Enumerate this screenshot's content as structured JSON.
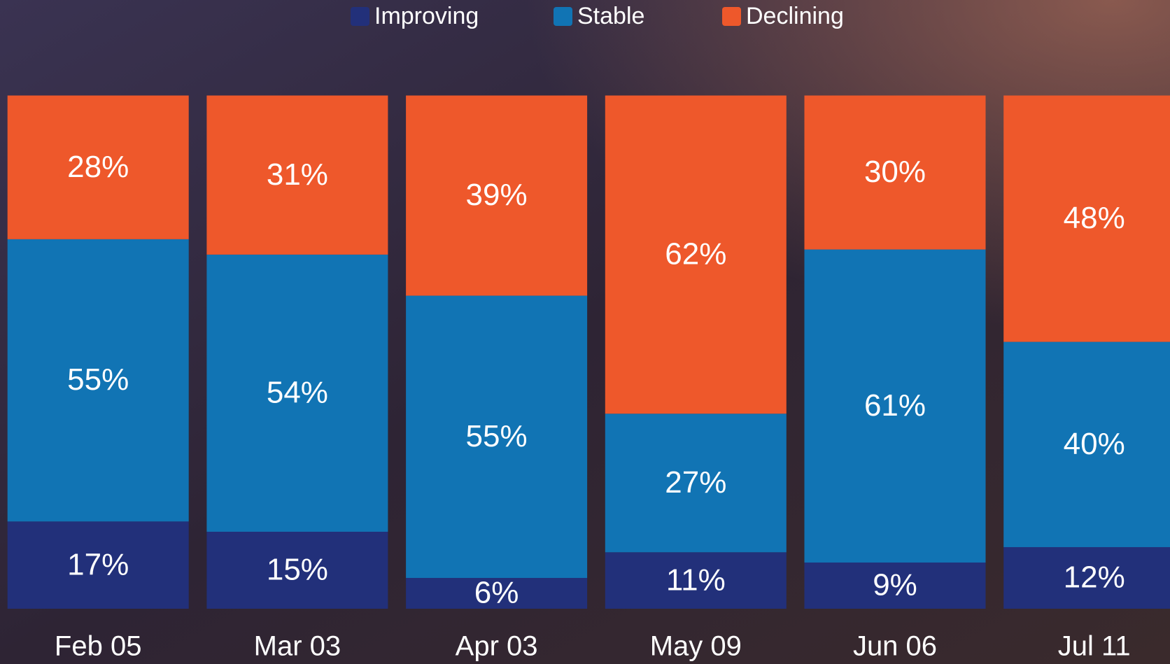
{
  "chart_data": {
    "type": "stacked_bar_100",
    "categories": [
      "Feb 05",
      "Mar 03",
      "Apr 03",
      "May 09",
      "Jun 06",
      "Jul 11"
    ],
    "series": [
      {
        "name": "Improving",
        "color": "#22307a",
        "values": [
          17,
          15,
          6,
          11,
          9,
          12
        ],
        "value_labels": [
          "17%",
          "15%",
          "6%",
          "11%",
          "9%",
          "12%"
        ]
      },
      {
        "name": "Stable",
        "color": "#1174b4",
        "values": [
          55,
          54,
          55,
          27,
          61,
          40
        ],
        "value_labels": [
          "55%",
          "54%",
          "55%",
          "27%",
          "61%",
          "40%"
        ]
      },
      {
        "name": "Declining",
        "color": "#ee582b",
        "values": [
          28,
          31,
          39,
          62,
          30,
          48
        ],
        "value_labels": [
          "28%",
          "31%",
          "39%",
          "62%",
          "30%",
          "48%"
        ]
      }
    ],
    "ylim": [
      0,
      100
    ],
    "legend": "top"
  }
}
